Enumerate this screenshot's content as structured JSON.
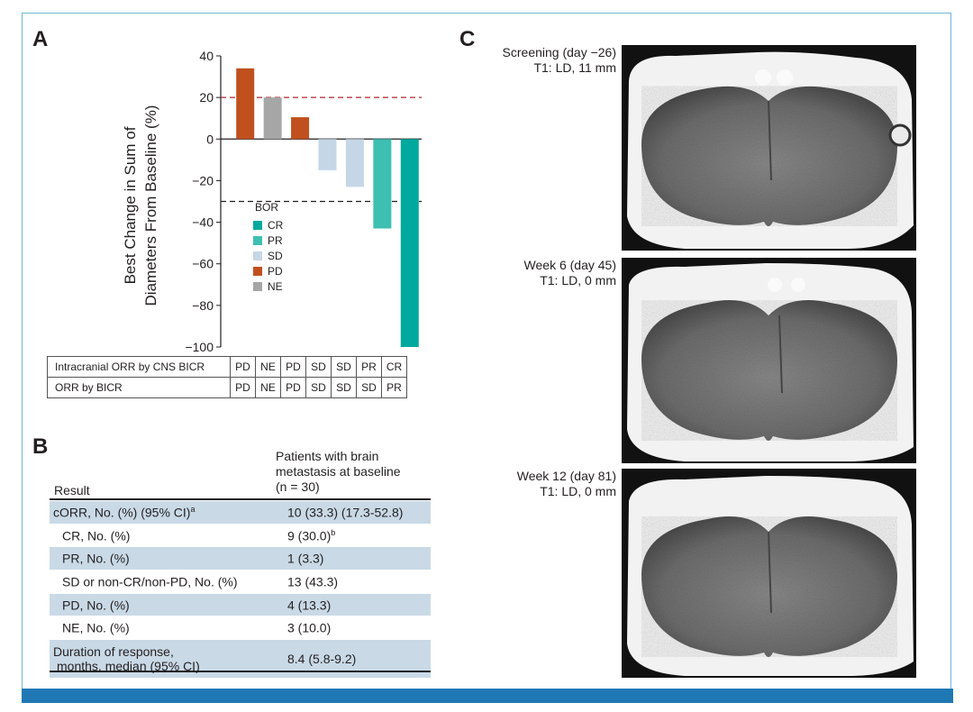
{
  "panels": {
    "a": "A",
    "b": "B",
    "c": "C"
  },
  "chart_data": {
    "type": "bar",
    "ylabel_line1": "Best Change in Sum of",
    "ylabel_line2": "Diameters From Baseline (%)",
    "ylim": [
      -100,
      40
    ],
    "yticks": [
      "40",
      "20",
      "0",
      "−20",
      "−40",
      "−60",
      "−80",
      "−100"
    ],
    "ytick_values": [
      40,
      20,
      0,
      -20,
      -40,
      -60,
      -80,
      -100
    ],
    "reference_lines": [
      20,
      -30
    ],
    "values": [
      34,
      20,
      10.5,
      -15,
      -23,
      -43,
      -100
    ],
    "bor": [
      "PD",
      "NE",
      "PD",
      "SD",
      "SD",
      "PR",
      "CR"
    ],
    "legend": {
      "title": "BOR",
      "items": [
        {
          "label": "CR",
          "color": "#00a99d"
        },
        {
          "label": "PR",
          "color": "#3dbfb2"
        },
        {
          "label": "SD",
          "color": "#c5d7e6"
        },
        {
          "label": "PD",
          "color": "#c1501f"
        },
        {
          "label": "NE",
          "color": "#a6a6a6"
        }
      ]
    }
  },
  "category_table": {
    "rows": [
      {
        "label": "Intracranial ORR by CNS BICR",
        "cells": [
          "PD",
          "NE",
          "PD",
          "SD",
          "SD",
          "PR",
          "CR"
        ]
      },
      {
        "label": "ORR by BICR",
        "cells": [
          "PD",
          "NE",
          "PD",
          "SD",
          "SD",
          "SD",
          "PR"
        ]
      }
    ]
  },
  "results_table": {
    "header_result": "Result",
    "header_col_line1": "Patients with brain",
    "header_col_line2": "metastasis at baseline",
    "header_col_line3": "(n = 30)",
    "rows": [
      {
        "label": "cORR, No. (%) (95% CI)",
        "sup": "a",
        "value": "10 (33.3) (17.3-52.8)",
        "vsup": ""
      },
      {
        "label": "CR, No. (%)",
        "sup": "",
        "value": "9 (30.0)",
        "vsup": "b"
      },
      {
        "label": "PR, No. (%)",
        "sup": "",
        "value": "1 (3.3)",
        "vsup": ""
      },
      {
        "label": "SD or non-CR/non-PD, No. (%)",
        "sup": "",
        "value": "13 (43.3)",
        "vsup": ""
      },
      {
        "label": "PD, No. (%)",
        "sup": "",
        "value": "4 (13.3)",
        "vsup": ""
      },
      {
        "label": "NE, No. (%)",
        "sup": "",
        "value": "3 (10.0)",
        "vsup": ""
      }
    ],
    "dor_line1": "Duration of response,",
    "dor_line2": "months, median (95% CI)",
    "dor_value": "8.4 (5.8-9.2)"
  },
  "scans": [
    {
      "line1": "Screening (day −26)",
      "line2": "T1: LD, 11 mm"
    },
    {
      "line1": "Week 6 (day 45)",
      "line2": "T1: LD, 0 mm"
    },
    {
      "line1": "Week 12 (day 81)",
      "line2": "T1: LD, 0 mm"
    }
  ]
}
